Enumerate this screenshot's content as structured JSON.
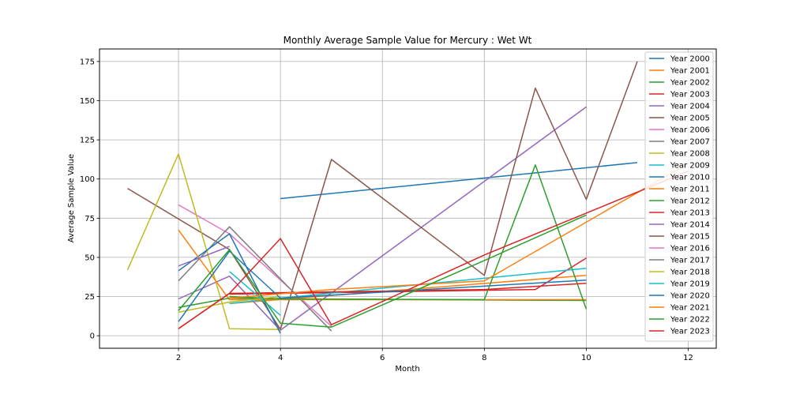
{
  "chart_data": {
    "type": "line",
    "title": "Monthly Average Sample Value for Mercury : Wet Wt",
    "xlabel": "Month",
    "ylabel": "Average Sample Value",
    "xlim": [
      0.45,
      12.55
    ],
    "ylim": [
      -8,
      183
    ],
    "xticks": [
      2,
      4,
      6,
      8,
      10,
      12
    ],
    "yticks": [
      0,
      25,
      50,
      75,
      100,
      125,
      150,
      175
    ],
    "grid": true,
    "legend_position": "top-right",
    "series": [
      {
        "name": "Year 2000",
        "color": "#1f77b4",
        "points": [
          [
            4,
            87.5
          ],
          [
            11,
            110.5
          ]
        ]
      },
      {
        "name": "Year 2001",
        "color": "#ff7f0e",
        "points": [
          [
            3,
            20.5
          ],
          [
            10,
            38.5
          ]
        ]
      },
      {
        "name": "Year 2002",
        "color": "#2ca02c",
        "points": [
          [
            3,
            25
          ],
          [
            4,
            23.5
          ],
          [
            10,
            22.5
          ]
        ]
      },
      {
        "name": "Year 2003",
        "color": "#d62728",
        "points": [
          [
            3,
            26.5
          ],
          [
            5,
            27.5
          ],
          [
            9,
            29.5
          ],
          [
            10,
            49.5
          ]
        ]
      },
      {
        "name": "Year 2004",
        "color": "#9467bd",
        "points": [
          [
            2,
            23.5
          ],
          [
            3,
            38
          ],
          [
            4,
            3.5
          ],
          [
            10,
            146
          ]
        ]
      },
      {
        "name": "Year 2005",
        "color": "#8c564b",
        "points": [
          [
            1,
            94
          ],
          [
            3,
            55
          ],
          [
            4,
            4
          ],
          [
            5,
            112.5
          ],
          [
            8,
            38.5
          ],
          [
            9,
            158
          ],
          [
            10,
            87
          ],
          [
            11,
            175
          ]
        ]
      },
      {
        "name": "Year 2006",
        "color": "#e377c2",
        "points": [
          [
            2,
            83.5
          ],
          [
            3,
            65
          ],
          [
            5,
            6
          ]
        ]
      },
      {
        "name": "Year 2007",
        "color": "#7f7f7f",
        "points": [
          [
            2,
            35
          ],
          [
            3,
            69.5
          ],
          [
            5,
            3
          ]
        ]
      },
      {
        "name": "Year 2008",
        "color": "#bcbd22",
        "points": [
          [
            1,
            42
          ],
          [
            2,
            116
          ],
          [
            3,
            4.5
          ],
          [
            4,
            4
          ]
        ]
      },
      {
        "name": "Year 2009",
        "color": "#17becf",
        "points": [
          [
            3,
            20.5
          ],
          [
            4,
            24
          ],
          [
            10,
            43
          ]
        ]
      },
      {
        "name": "Year 2010",
        "color": "#1f77b4",
        "points": [
          [
            2,
            41.5
          ],
          [
            3,
            65
          ],
          [
            4,
            1.5
          ]
        ]
      },
      {
        "name": "Year 2011",
        "color": "#ff7f0e",
        "points": [
          [
            2,
            67.5
          ],
          [
            3,
            23
          ],
          [
            10,
            23
          ]
        ]
      },
      {
        "name": "Year 2012",
        "color": "#2ca02c",
        "points": [
          [
            2,
            18
          ],
          [
            3,
            24
          ],
          [
            4,
            23.5
          ],
          [
            8,
            23
          ],
          [
            9,
            109
          ],
          [
            10,
            17
          ]
        ]
      },
      {
        "name": "Year 2013",
        "color": "#d62728",
        "points": [
          [
            2,
            4.5
          ],
          [
            3,
            27
          ],
          [
            4,
            27.5
          ],
          [
            8,
            29.5
          ],
          [
            10,
            33.5
          ]
        ]
      },
      {
        "name": "Year 2014",
        "color": "#9467bd",
        "points": [
          [
            2,
            44.5
          ],
          [
            3,
            57
          ]
        ]
      },
      {
        "name": "Year 2015",
        "color": "#8c564b",
        "points": [
          [
            3,
            55
          ]
        ]
      },
      {
        "name": "Year 2016",
        "color": "#e377c2",
        "points": [
          [
            3,
            61.5
          ]
        ]
      },
      {
        "name": "Year 2017",
        "color": "#7f7f7f",
        "points": [
          [
            3,
            53
          ]
        ]
      },
      {
        "name": "Year 2018",
        "color": "#bcbd22",
        "points": [
          [
            2,
            15
          ],
          [
            3,
            21.5
          ],
          [
            4,
            25
          ]
        ]
      },
      {
        "name": "Year 2019",
        "color": "#17becf",
        "points": [
          [
            3,
            41
          ],
          [
            4,
            13
          ]
        ]
      },
      {
        "name": "Year 2020",
        "color": "#1f77b4",
        "points": [
          [
            2,
            9
          ],
          [
            3,
            54
          ],
          [
            4,
            24
          ],
          [
            10,
            35.5
          ]
        ]
      },
      {
        "name": "Year 2021",
        "color": "#ff7f0e",
        "points": [
          [
            3,
            24
          ],
          [
            5,
            29.5
          ],
          [
            8,
            35
          ],
          [
            12,
            110
          ]
        ]
      },
      {
        "name": "Year 2022",
        "color": "#2ca02c",
        "points": [
          [
            2,
            16
          ],
          [
            3,
            55
          ],
          [
            4,
            8
          ],
          [
            5,
            5.5
          ],
          [
            8,
            48
          ],
          [
            10,
            77
          ]
        ]
      },
      {
        "name": "Year 2023",
        "color": "#d62728",
        "points": [
          [
            2,
            4.5
          ],
          [
            3,
            27
          ],
          [
            4,
            62
          ],
          [
            5,
            7
          ],
          [
            8,
            51.5
          ],
          [
            12,
            105
          ]
        ]
      }
    ]
  }
}
